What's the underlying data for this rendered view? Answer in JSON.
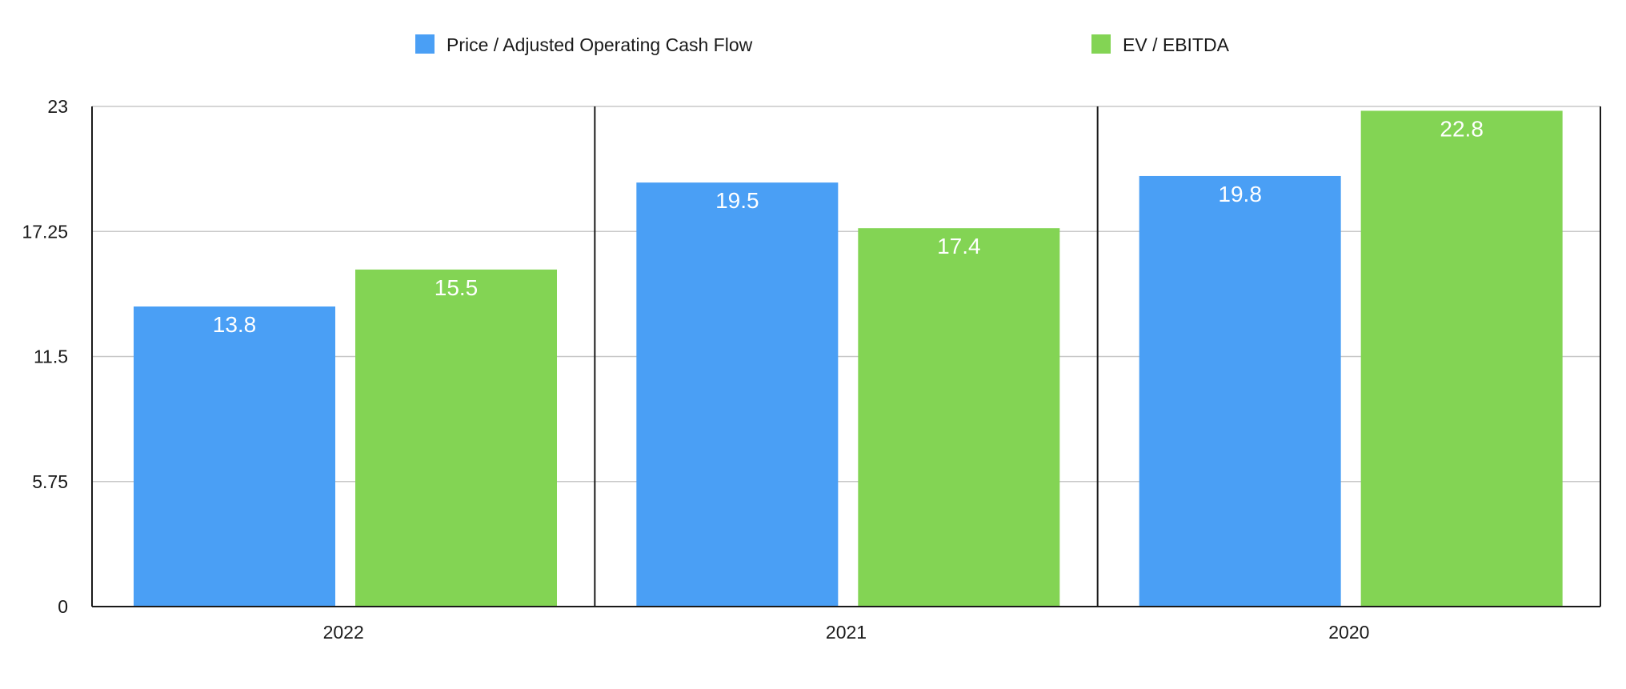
{
  "chart_data": {
    "type": "bar",
    "title": "",
    "xlabel": "",
    "ylabel": "",
    "categories": [
      "2022",
      "2021",
      "2020"
    ],
    "series": [
      {
        "name": "Price / Adjusted Operating Cash Flow",
        "color": "#4A9FF5",
        "values": [
          13.8,
          19.5,
          19.8
        ]
      },
      {
        "name": "EV / EBITDA",
        "color": "#83D454",
        "values": [
          15.5,
          17.4,
          22.8
        ]
      }
    ],
    "ylim": [
      0,
      23
    ],
    "yticks": [
      "0",
      "5.75",
      "11.5",
      "17.25",
      "23"
    ],
    "grid": true,
    "legend_position": "top"
  }
}
